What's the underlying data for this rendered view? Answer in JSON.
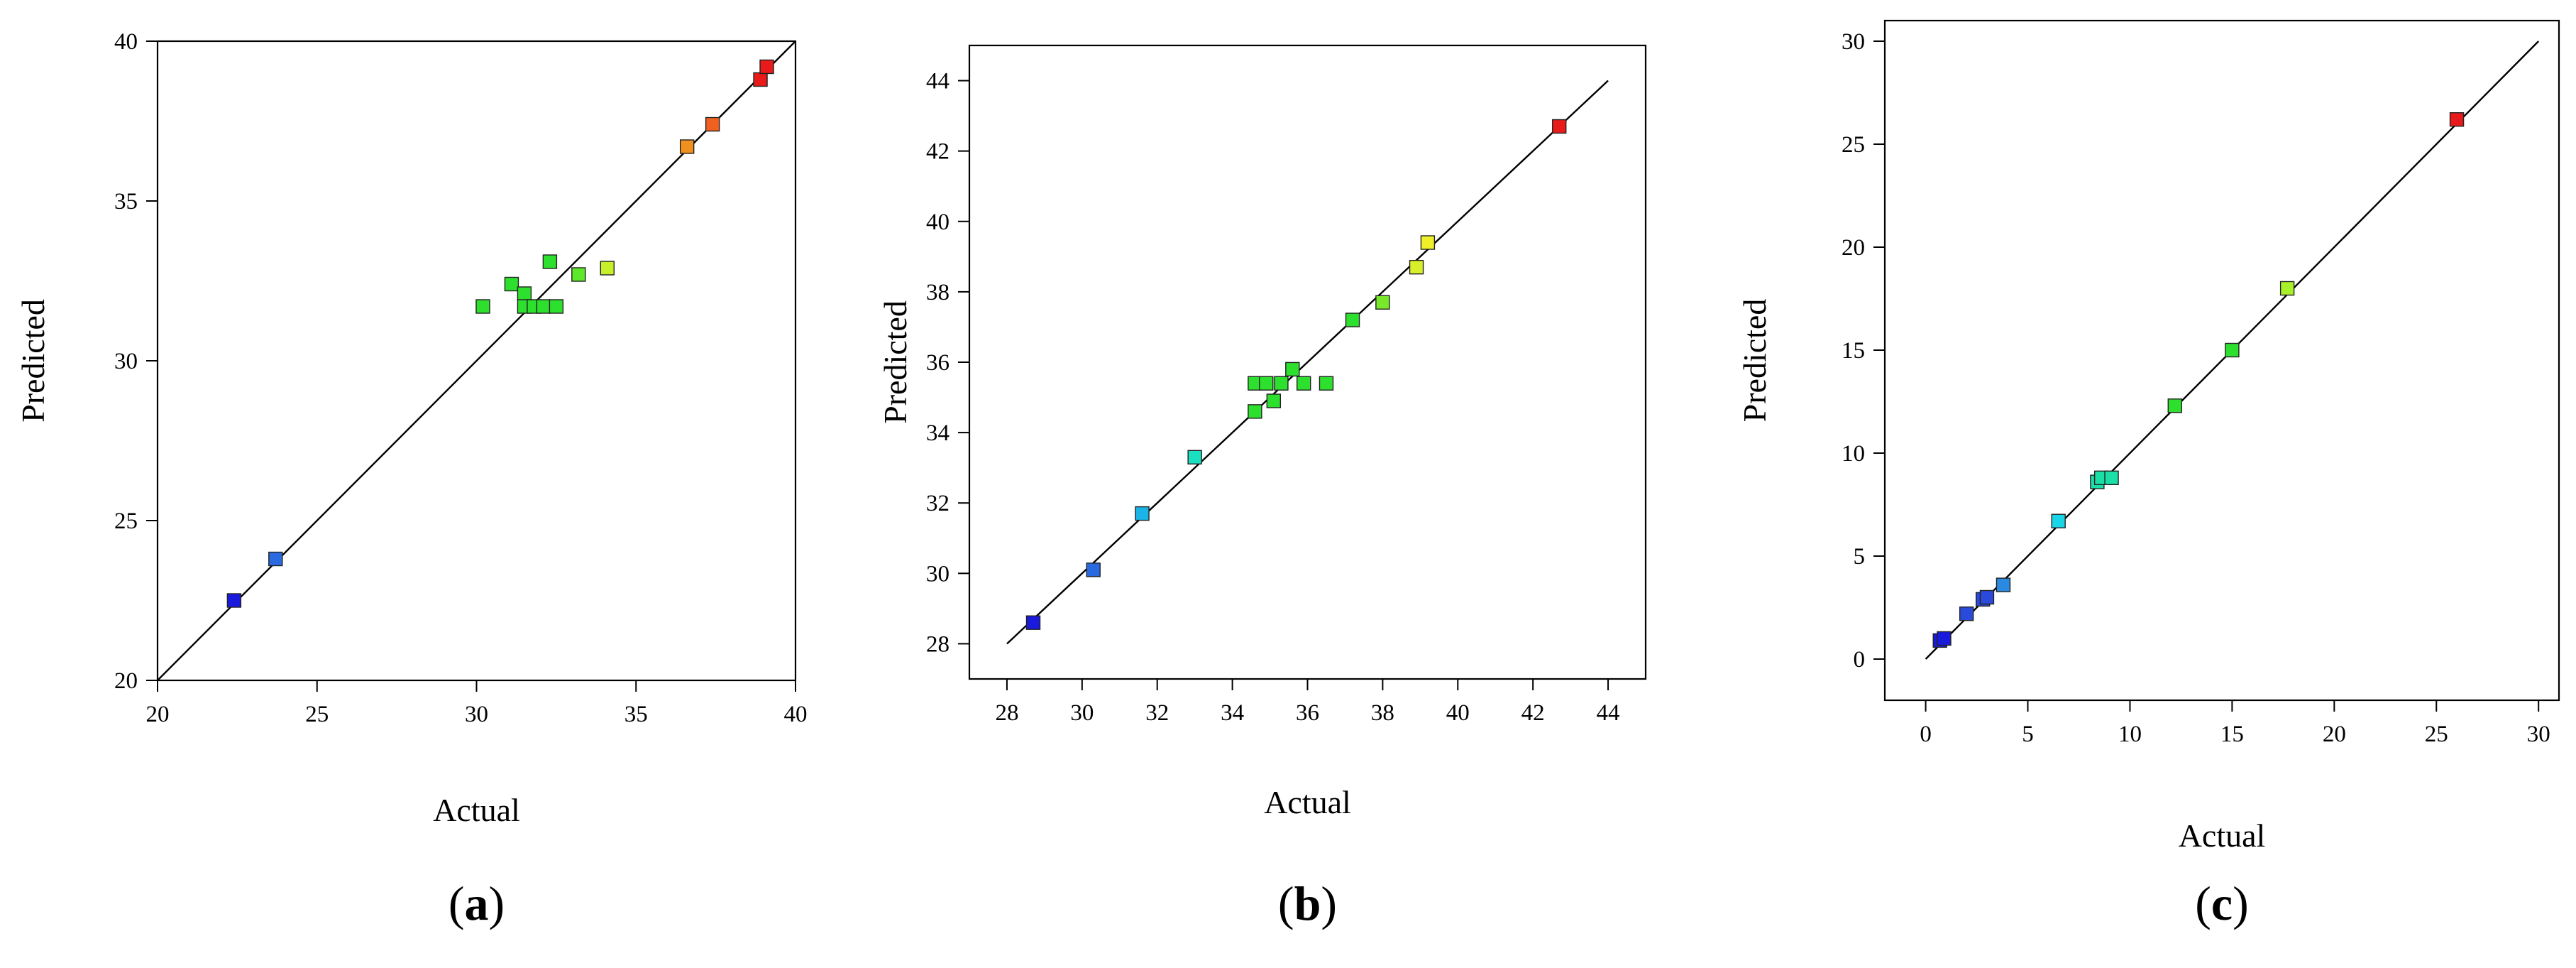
{
  "chart_data": [
    {
      "type": "scatter",
      "panel_label": "a",
      "xlabel": "Actual",
      "ylabel": "Predicted",
      "xlim": [
        20,
        40
      ],
      "ylim": [
        20,
        40
      ],
      "xticks": [
        20,
        25,
        30,
        35,
        40
      ],
      "yticks": [
        20,
        25,
        30,
        35,
        40
      ],
      "grid": false,
      "reference_line": [
        [
          20,
          20
        ],
        [
          40,
          40
        ]
      ],
      "points": [
        {
          "x": 22.4,
          "y": 22.5,
          "color": "#1a1adc"
        },
        {
          "x": 23.7,
          "y": 23.8,
          "color": "#2a6ae0"
        },
        {
          "x": 30.2,
          "y": 31.7,
          "color": "#2ee02e"
        },
        {
          "x": 31.1,
          "y": 32.4,
          "color": "#2ee02e"
        },
        {
          "x": 31.5,
          "y": 32.1,
          "color": "#2ee02e"
        },
        {
          "x": 31.5,
          "y": 31.7,
          "color": "#2ee02e"
        },
        {
          "x": 31.8,
          "y": 31.7,
          "color": "#2ee02e"
        },
        {
          "x": 32.1,
          "y": 31.7,
          "color": "#2ee02e"
        },
        {
          "x": 32.3,
          "y": 33.1,
          "color": "#2ee02e"
        },
        {
          "x": 32.5,
          "y": 31.7,
          "color": "#2ee02e"
        },
        {
          "x": 33.2,
          "y": 32.7,
          "color": "#5ee82a"
        },
        {
          "x": 34.1,
          "y": 32.9,
          "color": "#c8f02a"
        },
        {
          "x": 36.6,
          "y": 36.7,
          "color": "#f0901e"
        },
        {
          "x": 37.4,
          "y": 37.4,
          "color": "#f0601e"
        },
        {
          "x": 38.9,
          "y": 38.8,
          "color": "#e81a1a"
        },
        {
          "x": 39.1,
          "y": 39.2,
          "color": "#e81a1a"
        }
      ]
    },
    {
      "type": "scatter",
      "panel_label": "b",
      "xlabel": "Actual",
      "ylabel": "Predicted",
      "xlim": [
        27,
        45
      ],
      "ylim": [
        27,
        45
      ],
      "xticks": [
        28,
        30,
        32,
        34,
        36,
        38,
        40,
        42,
        44
      ],
      "yticks": [
        28,
        30,
        32,
        34,
        36,
        38,
        40,
        42,
        44
      ],
      "grid": false,
      "reference_line": [
        [
          28,
          28
        ],
        [
          44,
          44
        ]
      ],
      "points": [
        {
          "x": 28.7,
          "y": 28.6,
          "color": "#1a1adc"
        },
        {
          "x": 30.3,
          "y": 30.1,
          "color": "#2a6ae0"
        },
        {
          "x": 31.6,
          "y": 31.7,
          "color": "#1ab4e8"
        },
        {
          "x": 33.0,
          "y": 33.3,
          "color": "#1ae0c0"
        },
        {
          "x": 34.6,
          "y": 34.6,
          "color": "#2ee02e"
        },
        {
          "x": 34.6,
          "y": 35.4,
          "color": "#2ee02e"
        },
        {
          "x": 34.9,
          "y": 35.4,
          "color": "#2ee02e"
        },
        {
          "x": 35.1,
          "y": 34.9,
          "color": "#2ee02e"
        },
        {
          "x": 35.3,
          "y": 35.4,
          "color": "#2ee02e"
        },
        {
          "x": 35.6,
          "y": 35.8,
          "color": "#2ee02e"
        },
        {
          "x": 35.9,
          "y": 35.4,
          "color": "#2ee02e"
        },
        {
          "x": 36.5,
          "y": 35.4,
          "color": "#2ee02e"
        },
        {
          "x": 37.2,
          "y": 37.2,
          "color": "#2ee02e"
        },
        {
          "x": 38.0,
          "y": 37.7,
          "color": "#7ae82a"
        },
        {
          "x": 38.9,
          "y": 38.7,
          "color": "#d8f02a"
        },
        {
          "x": 39.2,
          "y": 39.4,
          "color": "#f0f02a"
        },
        {
          "x": 42.7,
          "y": 42.7,
          "color": "#e81a1a"
        }
      ]
    },
    {
      "type": "scatter",
      "panel_label": "c",
      "xlabel": "Actual",
      "ylabel": "Predicted",
      "xlim": [
        -2,
        31
      ],
      "ylim": [
        -2,
        31
      ],
      "xticks": [
        0,
        5,
        10,
        15,
        20,
        25,
        30
      ],
      "yticks": [
        0,
        5,
        10,
        15,
        20,
        25,
        30
      ],
      "grid": false,
      "reference_line": [
        [
          0,
          0
        ],
        [
          30,
          30
        ]
      ],
      "points": [
        {
          "x": 0.7,
          "y": 0.9,
          "color": "#1a1adc"
        },
        {
          "x": 0.9,
          "y": 1.0,
          "color": "#1a1adc"
        },
        {
          "x": 2.0,
          "y": 2.2,
          "color": "#2a4adc"
        },
        {
          "x": 2.8,
          "y": 2.9,
          "color": "#2a4adc"
        },
        {
          "x": 3.0,
          "y": 3.0,
          "color": "#2a4adc"
        },
        {
          "x": 3.8,
          "y": 3.6,
          "color": "#2a8ae0"
        },
        {
          "x": 6.5,
          "y": 6.7,
          "color": "#1ad4e8"
        },
        {
          "x": 8.4,
          "y": 8.6,
          "color": "#1ae0a8"
        },
        {
          "x": 8.6,
          "y": 8.8,
          "color": "#1ae0a8"
        },
        {
          "x": 9.1,
          "y": 8.8,
          "color": "#1ae0a8"
        },
        {
          "x": 12.2,
          "y": 12.3,
          "color": "#2ee02e"
        },
        {
          "x": 15.0,
          "y": 15.0,
          "color": "#2ee02e"
        },
        {
          "x": 17.7,
          "y": 18.0,
          "color": "#a8f02a"
        },
        {
          "x": 26.0,
          "y": 26.2,
          "color": "#e81a1a"
        }
      ]
    }
  ]
}
